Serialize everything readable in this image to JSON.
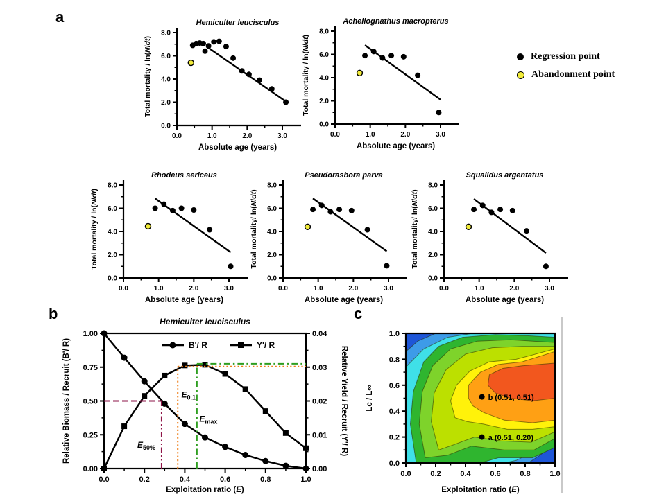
{
  "panels": {
    "a": {
      "label": "a",
      "legend": [
        {
          "marker": "filled-black-dot",
          "label": "Regression point"
        },
        {
          "marker": "open-yellow-dot",
          "label": "Abandonment point"
        }
      ]
    },
    "b": {
      "label": "b"
    },
    "c": {
      "label": "c"
    }
  },
  "colors": {
    "regression_point": "#000000",
    "abandonment_point": "#F2EC3A",
    "e50_maroon": "#8E1548",
    "e01_orange": "#EE7D15",
    "emax_green": "#2E9E20"
  },
  "chart_data": [
    {
      "id": "hemiculter-mortality",
      "type": "scatter",
      "title": "Hemiculter leucisculus",
      "xlabel": "Absolute age (years)",
      "ylabel": "Total mortality / ln(N/dt)",
      "xlim": [
        0,
        3.45
      ],
      "ylim": [
        0,
        8.4
      ],
      "xticks": [
        0,
        1,
        2,
        3
      ],
      "yticks": [
        0,
        2,
        4,
        6,
        8
      ],
      "series": [
        {
          "name": "Regression point",
          "color": "#000000",
          "points": [
            [
              0.45,
              6.9
            ],
            [
              0.55,
              7.05
            ],
            [
              0.65,
              7.1
            ],
            [
              0.75,
              7.05
            ],
            [
              0.8,
              6.4
            ],
            [
              0.9,
              6.85
            ],
            [
              1.05,
              7.2
            ],
            [
              1.2,
              7.25
            ],
            [
              1.4,
              6.8
            ],
            [
              1.6,
              5.8
            ],
            [
              1.85,
              4.7
            ],
            [
              2.05,
              4.4
            ],
            [
              2.35,
              3.9
            ],
            [
              2.7,
              3.15
            ],
            [
              3.1,
              2.0
            ]
          ]
        },
        {
          "name": "Abandonment point",
          "color": "#F2EC3A",
          "points": [
            [
              0.4,
              5.4
            ]
          ]
        }
      ],
      "regression_line": [
        [
          0.93,
          6.62
        ],
        [
          3.13,
          2.0
        ]
      ]
    },
    {
      "id": "acheilognathus-mortality",
      "type": "scatter",
      "title": "Acheilognathus macropterus",
      "xlabel": "Absolute age (years)",
      "ylabel": "Total mortality / ln(N/dt)",
      "xlim": [
        0,
        3.45
      ],
      "ylim": [
        0,
        8.4
      ],
      "xticks": [
        0,
        1,
        2,
        3
      ],
      "yticks": [
        0,
        2,
        4,
        6,
        8
      ],
      "series": [
        {
          "name": "Regression point",
          "color": "#000000",
          "points": [
            [
              0.85,
              5.9
            ],
            [
              1.1,
              6.25
            ],
            [
              1.35,
              5.7
            ],
            [
              1.6,
              5.9
            ],
            [
              1.95,
              5.8
            ],
            [
              2.35,
              4.2
            ],
            [
              2.95,
              1.0
            ]
          ]
        },
        {
          "name": "Abandonment point",
          "color": "#F2EC3A",
          "points": [
            [
              0.7,
              4.4
            ]
          ]
        }
      ],
      "regression_line": [
        [
          0.85,
          6.8
        ],
        [
          3.0,
          2.1
        ]
      ]
    },
    {
      "id": "rhodeus-mortality",
      "type": "scatter",
      "title": "Rhodeus sericeus",
      "xlabel": "Absolute age (years)",
      "ylabel": "Total mortality / ln(N/dt)",
      "xlim": [
        0,
        3.45
      ],
      "ylim": [
        0,
        8.4
      ],
      "xticks": [
        0,
        1,
        2,
        3
      ],
      "yticks": [
        0,
        2,
        4,
        6,
        8
      ],
      "series": [
        {
          "name": "Regression point",
          "color": "#000000",
          "points": [
            [
              0.9,
              6.0
            ],
            [
              1.15,
              6.35
            ],
            [
              1.4,
              5.8
            ],
            [
              1.65,
              6.0
            ],
            [
              2.0,
              5.85
            ],
            [
              2.45,
              4.15
            ],
            [
              3.05,
              1.0
            ]
          ]
        },
        {
          "name": "Abandonment point",
          "color": "#F2EC3A",
          "points": [
            [
              0.7,
              4.45
            ]
          ]
        }
      ],
      "regression_line": [
        [
          0.9,
          6.85
        ],
        [
          3.05,
          2.2
        ]
      ]
    },
    {
      "id": "pseudorasbora-mortality",
      "type": "scatter",
      "title": "Pseudorasbora parva",
      "xlabel": "Absolute age (years)",
      "ylabel": "Total mortality/ ln(N/dt)",
      "xlim": [
        0,
        3.45
      ],
      "ylim": [
        0,
        8.4
      ],
      "xticks": [
        0,
        1,
        2,
        3
      ],
      "yticks": [
        0,
        2,
        4,
        6,
        8
      ],
      "series": [
        {
          "name": "Regression point",
          "color": "#000000",
          "points": [
            [
              0.85,
              5.9
            ],
            [
              1.1,
              6.25
            ],
            [
              1.35,
              5.7
            ],
            [
              1.6,
              5.9
            ],
            [
              1.95,
              5.8
            ],
            [
              2.4,
              4.15
            ],
            [
              2.95,
              1.05
            ]
          ]
        },
        {
          "name": "Abandonment point",
          "color": "#F2EC3A",
          "points": [
            [
              0.7,
              4.4
            ]
          ]
        }
      ],
      "regression_line": [
        [
          0.85,
          6.85
        ],
        [
          2.95,
          2.3
        ]
      ]
    },
    {
      "id": "squalidus-mortality",
      "type": "scatter",
      "title": "Squalidus argentatus",
      "xlabel": "Absolute age (years)",
      "ylabel": "Total mortality/ ln(N/dt)",
      "xlim": [
        0,
        3.45
      ],
      "ylim": [
        0,
        8.4
      ],
      "xticks": [
        0,
        1,
        2,
        3
      ],
      "yticks": [
        0,
        2,
        4,
        6,
        8
      ],
      "series": [
        {
          "name": "Regression point",
          "color": "#000000",
          "points": [
            [
              0.85,
              5.9
            ],
            [
              1.1,
              6.25
            ],
            [
              1.35,
              5.65
            ],
            [
              1.6,
              5.9
            ],
            [
              1.95,
              5.8
            ],
            [
              2.35,
              4.05
            ],
            [
              2.9,
              1.0
            ]
          ]
        },
        {
          "name": "Abandonment point",
          "color": "#F2EC3A",
          "points": [
            [
              0.7,
              4.4
            ]
          ]
        }
      ],
      "regression_line": [
        [
          0.85,
          6.8
        ],
        [
          2.9,
          2.15
        ]
      ]
    },
    {
      "id": "yield-biomass-per-recruit",
      "type": "line",
      "title": "Hemiculter leucisculus",
      "xlabel": "Exploitation ratio (E)",
      "ylabel_left": "Relative Biomass / Recruit (B'/ R)",
      "ylabel_right": "Relative Yield / Recruit (Y'/ R)",
      "xlim": [
        0,
        1
      ],
      "ylim_left": [
        0,
        1
      ],
      "ylim_right": [
        0,
        0.04
      ],
      "xticks": [
        0,
        0.2,
        0.4,
        0.6,
        0.8,
        1
      ],
      "yticks_left": [
        0,
        0.25,
        0.5,
        0.75,
        1
      ],
      "yticks_right": [
        0,
        0.01,
        0.02,
        0.03,
        0.04
      ],
      "x": [
        0,
        0.1,
        0.2,
        0.3,
        0.4,
        0.5,
        0.6,
        0.7,
        0.8,
        0.9,
        1
      ],
      "series": [
        {
          "name": "B'/ R",
          "axis": "left",
          "marker": "circle",
          "values": [
            1.0,
            0.82,
            0.645,
            0.48,
            0.33,
            0.23,
            0.16,
            0.1,
            0.055,
            0.02,
            0.0
          ]
        },
        {
          "name": "Y'/ R",
          "axis": "right",
          "marker": "square",
          "values": [
            0.0,
            0.0125,
            0.0215,
            0.0275,
            0.0305,
            0.0307,
            0.028,
            0.0235,
            0.017,
            0.0105,
            0.006
          ]
        }
      ],
      "annotations": [
        {
          "name": "E50%",
          "main": "E",
          "sub": "50%",
          "x": 0.285,
          "y": 0.5,
          "y_axis": "left",
          "color": "#8E1548",
          "v_style": "dashdotdot",
          "h_style": "dashed",
          "h_dir": "left",
          "label_x": 0.165,
          "label_y": 0.155
        },
        {
          "name": "E0.1",
          "main": "E",
          "sub": "0.1",
          "x": 0.365,
          "y": 0.0302,
          "y_axis": "right",
          "color": "#EE7D15",
          "v_style": "dotted",
          "h_style": "dotted",
          "h_dir": "right",
          "label_x": 0.383,
          "label_y": 0.525
        },
        {
          "name": "Emax",
          "main": "E",
          "sub": "max",
          "x": 0.46,
          "y": 0.031,
          "y_axis": "right",
          "color": "#2E9E20",
          "v_style": "dashdot",
          "h_style": "dashdot",
          "h_dir": "right",
          "label_x": 0.472,
          "label_y": 0.345
        }
      ]
    },
    {
      "id": "yield-isopleth",
      "type": "contour",
      "xlabel": "Exploitation ratio (E)",
      "ylabel": "Lc / L∞",
      "xlim": [
        0,
        1
      ],
      "ylim": [
        0,
        1
      ],
      "xticks": [
        0,
        0.2,
        0.4,
        0.6,
        0.8,
        1
      ],
      "yticks": [
        0,
        0.2,
        0.4,
        0.6,
        0.8,
        1
      ],
      "points": [
        {
          "name": "b",
          "x": 0.51,
          "y": 0.51,
          "label": "b (0.51, 0.51)"
        },
        {
          "name": "a",
          "x": 0.51,
          "y": 0.2,
          "label": "a (0.51, 0.20)"
        }
      ],
      "bands": [
        {
          "color": "#1E56D8",
          "poly": [
            [
              0,
              0
            ],
            [
              1,
              0
            ],
            [
              1,
              1
            ],
            [
              0,
              1
            ]
          ]
        },
        {
          "color": "#3D9BE8",
          "poly": [
            [
              0,
              0.86
            ],
            [
              0.08,
              0.94
            ],
            [
              0.2,
              1
            ],
            [
              1,
              1
            ],
            [
              1,
              0.16
            ],
            [
              0.9,
              0.06
            ],
            [
              0.82,
              0
            ],
            [
              0,
              0
            ]
          ]
        },
        {
          "color": "#3FE0E8",
          "poly": [
            [
              0,
              0
            ],
            [
              0,
              0.74
            ],
            [
              0.12,
              0.88
            ],
            [
              0.28,
              0.97
            ],
            [
              0.45,
              1
            ],
            [
              1,
              1
            ],
            [
              1,
              0.25
            ],
            [
              0.88,
              0.1
            ],
            [
              0.74,
              0.02
            ],
            [
              0.66,
              0
            ]
          ]
        },
        {
          "color": "#2FB52F",
          "poly": [
            [
              0.07,
              0
            ],
            [
              0.03,
              0.3
            ],
            [
              0.05,
              0.55
            ],
            [
              0.12,
              0.78
            ],
            [
              0.22,
              0.9
            ],
            [
              0.38,
              0.97
            ],
            [
              0.6,
              0.99
            ],
            [
              0.85,
              0.98
            ],
            [
              1,
              0.97
            ],
            [
              1,
              0.12
            ],
            [
              0.85,
              0.04
            ],
            [
              0.62,
              0.04
            ],
            [
              0.5,
              0
            ]
          ]
        },
        {
          "color": "#7ED32B",
          "poly": [
            [
              0.13,
              0.04
            ],
            [
              0.09,
              0.3
            ],
            [
              0.11,
              0.55
            ],
            [
              0.18,
              0.75
            ],
            [
              0.3,
              0.88
            ],
            [
              0.48,
              0.94
            ],
            [
              0.7,
              0.95
            ],
            [
              1,
              0.93
            ],
            [
              1,
              0.19
            ],
            [
              0.86,
              0.1
            ],
            [
              0.66,
              0.1
            ],
            [
              0.44,
              0.13
            ],
            [
              0.28,
              0.06
            ]
          ]
        },
        {
          "color": "#BCE000",
          "poly": [
            [
              0.22,
              0.1
            ],
            [
              0.17,
              0.32
            ],
            [
              0.19,
              0.54
            ],
            [
              0.27,
              0.72
            ],
            [
              0.4,
              0.84
            ],
            [
              0.58,
              0.89
            ],
            [
              0.78,
              0.9
            ],
            [
              1,
              0.9
            ],
            [
              1,
              0.24
            ],
            [
              0.84,
              0.16
            ],
            [
              0.64,
              0.17
            ],
            [
              0.46,
              0.2
            ],
            [
              0.32,
              0.14
            ]
          ]
        },
        {
          "color": "#FFF20A",
          "poly": [
            [
              0.33,
              0.35
            ],
            [
              0.3,
              0.48
            ],
            [
              0.34,
              0.6
            ],
            [
              0.43,
              0.71
            ],
            [
              0.56,
              0.78
            ],
            [
              0.74,
              0.8
            ],
            [
              1,
              0.88
            ],
            [
              1,
              0.28
            ],
            [
              0.85,
              0.26
            ],
            [
              0.68,
              0.26
            ],
            [
              0.52,
              0.3
            ],
            [
              0.41,
              0.32
            ]
          ]
        },
        {
          "color": "#FFA014",
          "poly": [
            [
              0.42,
              0.5
            ],
            [
              0.42,
              0.6
            ],
            [
              0.5,
              0.7
            ],
            [
              0.62,
              0.76
            ],
            [
              0.78,
              0.78
            ],
            [
              1,
              0.86
            ],
            [
              1,
              0.33
            ],
            [
              0.85,
              0.31
            ],
            [
              0.66,
              0.33
            ],
            [
              0.52,
              0.39
            ],
            [
              0.45,
              0.44
            ]
          ]
        },
        {
          "color": "#F2571E",
          "poly": [
            [
              0.55,
              0.6
            ],
            [
              0.56,
              0.68
            ],
            [
              0.65,
              0.73
            ],
            [
              0.78,
              0.75
            ],
            [
              1,
              0.77
            ],
            [
              1,
              0.5
            ],
            [
              0.85,
              0.48
            ],
            [
              0.7,
              0.5
            ],
            [
              0.6,
              0.54
            ]
          ]
        }
      ]
    }
  ]
}
